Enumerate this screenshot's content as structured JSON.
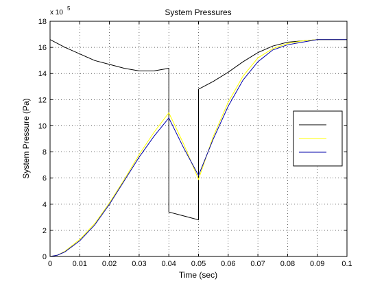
{
  "chart_data": {
    "type": "line",
    "title": "System Pressures",
    "xlabel": "Time (sec)",
    "ylabel": "System Pressure (Pa)",
    "y_multiplier_base": "x 10",
    "y_multiplier_exp": "5",
    "xlim": [
      0,
      0.1
    ],
    "ylim": [
      0,
      18
    ],
    "x_ticks": [
      "0",
      "0.01",
      "0.02",
      "0.03",
      "0.04",
      "0.05",
      "0.06",
      "0.07",
      "0.08",
      "0.09",
      "0.1"
    ],
    "y_ticks": [
      "0",
      "2",
      "4",
      "6",
      "8",
      "10",
      "12",
      "14",
      "16",
      "18"
    ],
    "grid": true,
    "legend": {
      "position": "right",
      "entries": 3
    },
    "series": [
      {
        "color": "#000000",
        "x": [
          0,
          0.005,
          0.01,
          0.015,
          0.02,
          0.025,
          0.03,
          0.035,
          0.04,
          0.04,
          0.045,
          0.05,
          0.05,
          0.055,
          0.06,
          0.065,
          0.07,
          0.075,
          0.08,
          0.085,
          0.09,
          0.095,
          0.1
        ],
        "y": [
          16.6,
          16.0,
          15.5,
          15.0,
          14.7,
          14.4,
          14.2,
          14.2,
          14.4,
          3.4,
          3.1,
          2.8,
          12.8,
          13.4,
          14.1,
          14.9,
          15.6,
          16.1,
          16.4,
          16.5,
          16.6,
          16.6,
          16.6
        ]
      },
      {
        "color": "#ffff00",
        "x": [
          0,
          0.0025,
          0.005,
          0.01,
          0.015,
          0.02,
          0.025,
          0.03,
          0.035,
          0.04,
          0.045,
          0.05,
          0.055,
          0.06,
          0.065,
          0.07,
          0.075,
          0.08,
          0.085,
          0.09,
          0.095,
          0.1
        ],
        "y": [
          0,
          0.1,
          0.4,
          1.3,
          2.5,
          4.1,
          5.9,
          7.8,
          9.5,
          11.0,
          8.6,
          5.9,
          9.2,
          11.8,
          13.8,
          15.2,
          15.9,
          16.3,
          16.5,
          16.6,
          16.6,
          16.6
        ]
      },
      {
        "color": "#0000aa",
        "x": [
          0,
          0.0025,
          0.005,
          0.01,
          0.015,
          0.02,
          0.025,
          0.03,
          0.035,
          0.04,
          0.045,
          0.05,
          0.055,
          0.06,
          0.065,
          0.07,
          0.075,
          0.08,
          0.085,
          0.09,
          0.095,
          0.1
        ],
        "y": [
          0,
          0.1,
          0.35,
          1.2,
          2.4,
          4.0,
          5.8,
          7.6,
          9.2,
          10.6,
          8.3,
          6.2,
          9.0,
          11.5,
          13.5,
          14.9,
          15.8,
          16.2,
          16.4,
          16.6,
          16.6,
          16.6
        ]
      }
    ]
  }
}
